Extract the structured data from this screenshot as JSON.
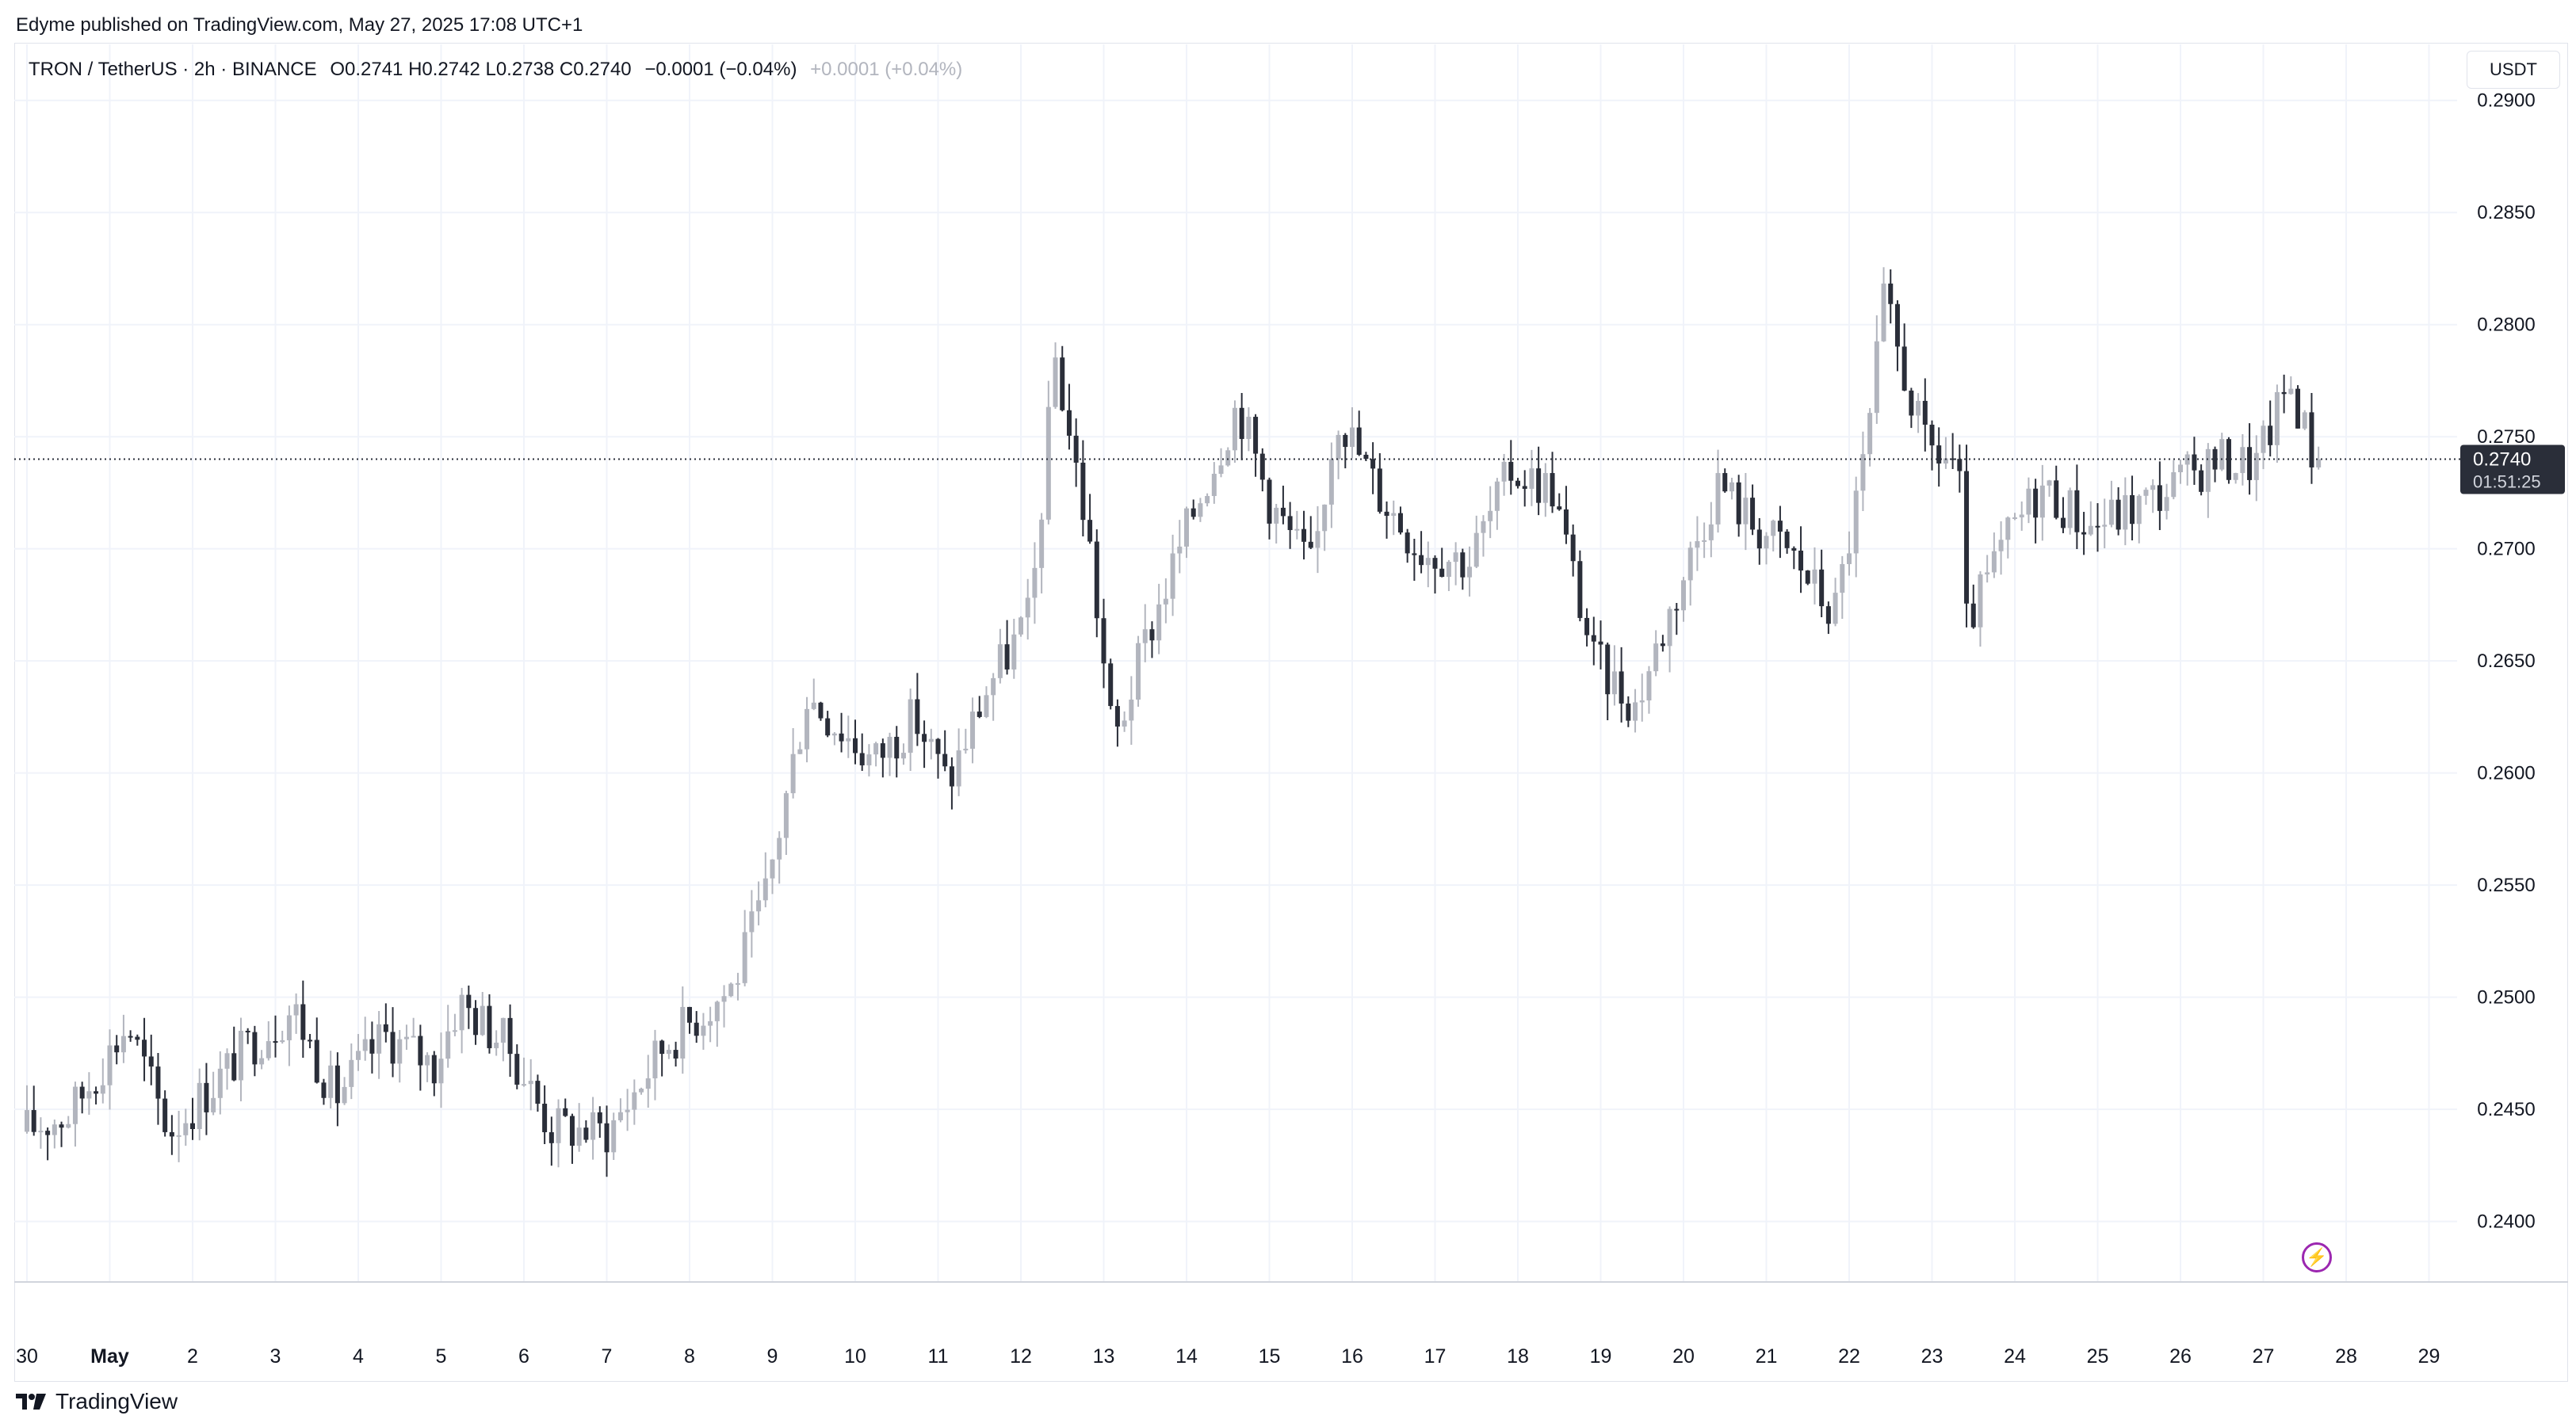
{
  "publisher_line": "Edyme published on TradingView.com, May 27, 2025 17:08 UTC+1",
  "legend": {
    "symbol": "TRON / TetherUS · 2h · BINANCE",
    "ohlc": "O0.2741 H0.2742 L0.2738 C0.2740",
    "change": "−0.0001 (−0.04%)",
    "change_secondary": "+0.0001 (+0.04%)"
  },
  "currency": "USDT",
  "brand": "TradingView",
  "icons": {
    "brand_logo": "tradingview-logo-icon",
    "bolt": "lightning-icon"
  },
  "colors": {
    "up": "#b2b5be",
    "down": "#2a2e39",
    "grid": "#f0f3fa",
    "axis_text": "#131722",
    "label_bg": "#2a2e39"
  },
  "chart_data": {
    "type": "candlestick",
    "interval": "2h",
    "ylim": [
      0.2373,
      0.2925
    ],
    "y_ticks": [
      "0.2400",
      "0.2450",
      "0.2500",
      "0.2550",
      "0.2600",
      "0.2650",
      "0.2700",
      "0.2750",
      "0.2800",
      "0.2850",
      "0.2900"
    ],
    "x_ticks": [
      {
        "label": "30",
        "day": 0
      },
      {
        "label": "May",
        "day": 1
      },
      {
        "label": "2",
        "day": 2
      },
      {
        "label": "3",
        "day": 3
      },
      {
        "label": "4",
        "day": 4
      },
      {
        "label": "5",
        "day": 5
      },
      {
        "label": "6",
        "day": 6
      },
      {
        "label": "7",
        "day": 7
      },
      {
        "label": "8",
        "day": 8
      },
      {
        "label": "9",
        "day": 9
      },
      {
        "label": "10",
        "day": 10
      },
      {
        "label": "11",
        "day": 11
      },
      {
        "label": "12",
        "day": 12
      },
      {
        "label": "13",
        "day": 13
      },
      {
        "label": "14",
        "day": 14
      },
      {
        "label": "15",
        "day": 15
      },
      {
        "label": "16",
        "day": 16
      },
      {
        "label": "17",
        "day": 17
      },
      {
        "label": "18",
        "day": 18
      },
      {
        "label": "19",
        "day": 19
      },
      {
        "label": "20",
        "day": 20
      },
      {
        "label": "21",
        "day": 21
      },
      {
        "label": "22",
        "day": 22
      },
      {
        "label": "23",
        "day": 23
      },
      {
        "label": "24",
        "day": 24
      },
      {
        "label": "25",
        "day": 25
      },
      {
        "label": "26",
        "day": 26
      },
      {
        "label": "27",
        "day": 27
      },
      {
        "label": "28",
        "day": 28
      },
      {
        "label": "29",
        "day": 29
      }
    ],
    "last_price": 0.274,
    "last_price_label": "0.2740",
    "countdown_label": "01:51:25",
    "key_points": [
      {
        "day": 0.0,
        "price": 0.244
      },
      {
        "day": 0.6,
        "price": 0.2448
      },
      {
        "day": 1.3,
        "price": 0.2488
      },
      {
        "day": 1.8,
        "price": 0.244
      },
      {
        "day": 2.8,
        "price": 0.248
      },
      {
        "day": 3.3,
        "price": 0.2495
      },
      {
        "day": 3.8,
        "price": 0.2455
      },
      {
        "day": 4.4,
        "price": 0.2483
      },
      {
        "day": 5.0,
        "price": 0.247
      },
      {
        "day": 5.3,
        "price": 0.2498
      },
      {
        "day": 5.9,
        "price": 0.2478
      },
      {
        "day": 6.4,
        "price": 0.2442
      },
      {
        "day": 7.1,
        "price": 0.244
      },
      {
        "day": 7.8,
        "price": 0.248
      },
      {
        "day": 8.6,
        "price": 0.2505
      },
      {
        "day": 9.0,
        "price": 0.2545
      },
      {
        "day": 9.5,
        "price": 0.2635
      },
      {
        "day": 10.3,
        "price": 0.2605
      },
      {
        "day": 10.8,
        "price": 0.2625
      },
      {
        "day": 11.2,
        "price": 0.2595
      },
      {
        "day": 11.7,
        "price": 0.264
      },
      {
        "day": 12.2,
        "price": 0.267
      },
      {
        "day": 12.5,
        "price": 0.2785
      },
      {
        "day": 12.9,
        "price": 0.2705
      },
      {
        "day": 13.2,
        "price": 0.2612
      },
      {
        "day": 13.6,
        "price": 0.266
      },
      {
        "day": 14.2,
        "price": 0.272
      },
      {
        "day": 14.7,
        "price": 0.2765
      },
      {
        "day": 15.1,
        "price": 0.272
      },
      {
        "day": 15.6,
        "price": 0.269
      },
      {
        "day": 15.9,
        "price": 0.2762
      },
      {
        "day": 16.4,
        "price": 0.2725
      },
      {
        "day": 16.9,
        "price": 0.27
      },
      {
        "day": 17.5,
        "price": 0.2695
      },
      {
        "day": 18.0,
        "price": 0.2735
      },
      {
        "day": 18.5,
        "price": 0.2727
      },
      {
        "day": 19.0,
        "price": 0.265
      },
      {
        "day": 19.5,
        "price": 0.263
      },
      {
        "day": 20.0,
        "price": 0.268
      },
      {
        "day": 20.5,
        "price": 0.273
      },
      {
        "day": 20.9,
        "price": 0.2712
      },
      {
        "day": 21.4,
        "price": 0.2697
      },
      {
        "day": 21.9,
        "price": 0.267
      },
      {
        "day": 22.3,
        "price": 0.2745
      },
      {
        "day": 22.5,
        "price": 0.281
      },
      {
        "day": 23.0,
        "price": 0.2745
      },
      {
        "day": 23.4,
        "price": 0.2738
      },
      {
        "day": 23.5,
        "price": 0.2665
      },
      {
        "day": 24.0,
        "price": 0.2705
      },
      {
        "day": 24.4,
        "price": 0.2728
      },
      {
        "day": 25.0,
        "price": 0.271
      },
      {
        "day": 25.5,
        "price": 0.2718
      },
      {
        "day": 26.0,
        "price": 0.2728
      },
      {
        "day": 26.5,
        "price": 0.274
      },
      {
        "day": 27.0,
        "price": 0.2738
      },
      {
        "day": 27.4,
        "price": 0.2775
      },
      {
        "day": 27.7,
        "price": 0.274
      }
    ]
  }
}
